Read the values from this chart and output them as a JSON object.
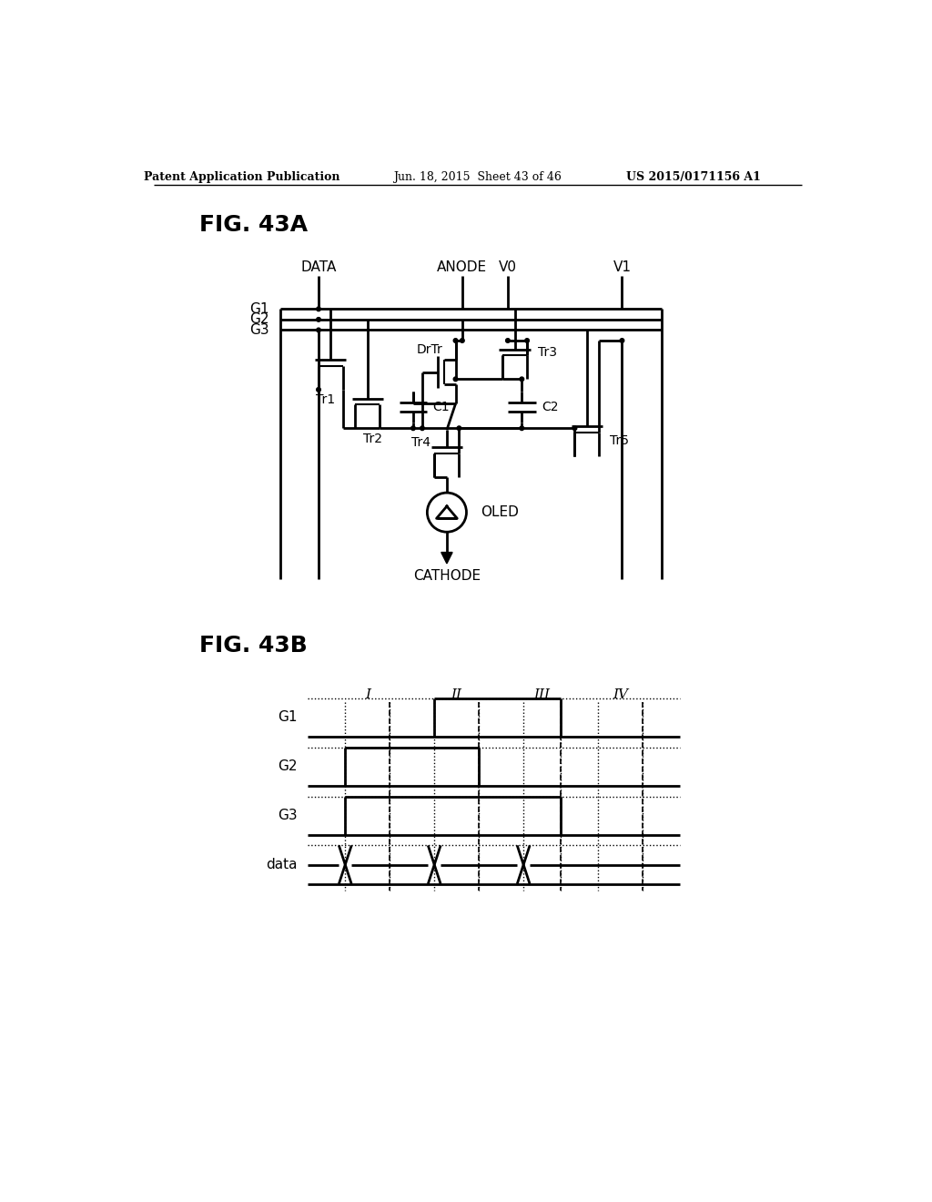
{
  "bg_color": "#ffffff",
  "header_left": "Patent Application Publication",
  "header_mid": "Jun. 18, 2015  Sheet 43 of 46",
  "header_right": "US 2015/0171156 A1",
  "fig_label_a": "FIG. 43A",
  "fig_label_b": "FIG. 43B"
}
